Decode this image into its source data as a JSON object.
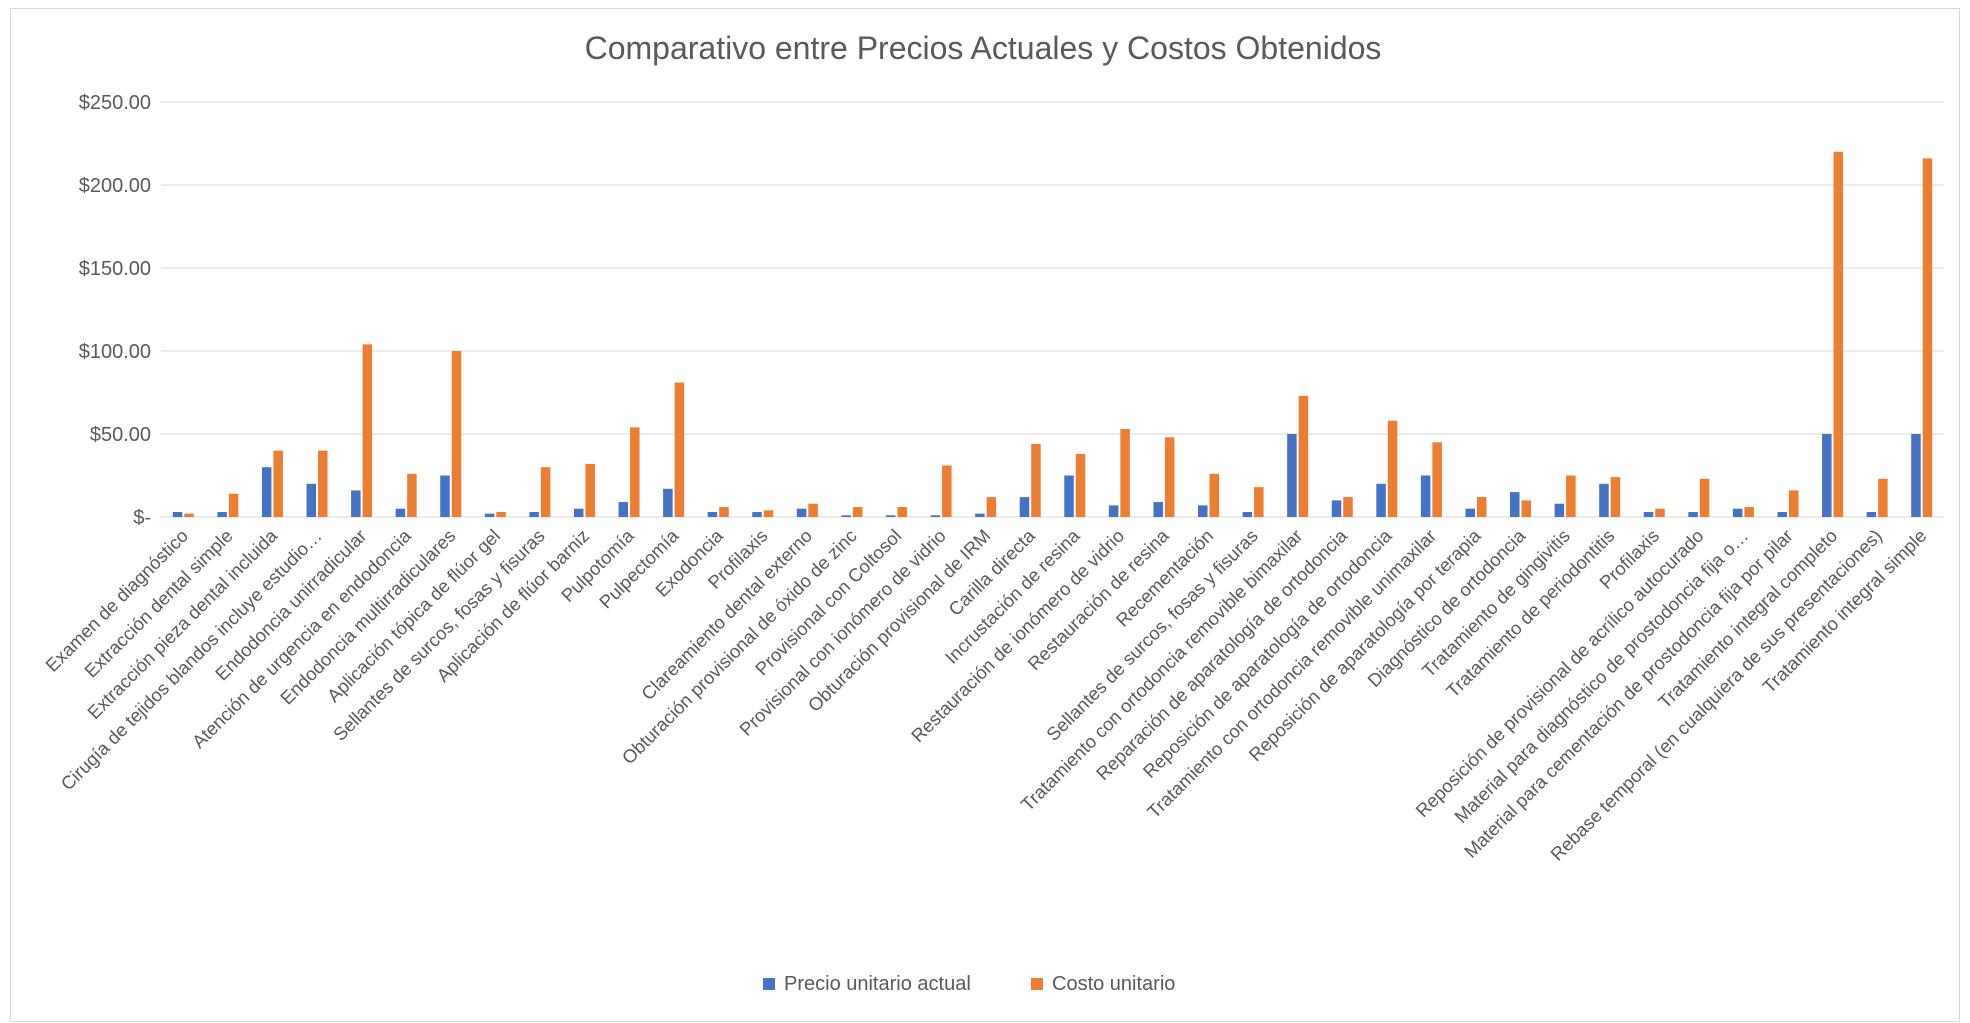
{
  "chart_data": {
    "type": "bar",
    "title": "Comparativo entre Precios Actuales y Costos Obtenidos",
    "xlabel": "",
    "ylabel": "",
    "ylim": [
      0,
      250
    ],
    "ytick_values": [
      0,
      50,
      100,
      150,
      200,
      250
    ],
    "ytick_labels": [
      "$-",
      "$50.00",
      "$100.00",
      "$150.00",
      "$200.00",
      "$250.00"
    ],
    "grid": true,
    "legend_position": "bottom",
    "categories": [
      "Examen de diagnóstico",
      "Extracción dental simple",
      "Extracción pieza dental incluida",
      "Cirugía de tejidos blandos incluye estudio…",
      "Endodoncia unirradicular",
      "Atención de urgencia en endodoncia",
      "Endodoncia multirradiculares",
      "Aplicación tópica de flúor gel",
      "Sellantes de surcos, fosas y fisuras",
      "Aplicación de flúor barniz",
      "Pulpotomía",
      "Pulpectomía",
      "Exodoncia",
      "Profilaxis",
      "Clareamiento dental externo",
      "Obturación provisional de óxido de zinc",
      "Provisional con Coltosol",
      "Provisional con ionómero de vidrio",
      "Obturación provisional de IRM",
      "Carilla directa",
      "Incrustación de resina",
      "Restauración de ionómero de vidrio",
      "Restauración de resina",
      "Recementación",
      "Sellantes de surcos, fosas y fisuras",
      "Tratamiento con ortodoncia removible bimaxilar",
      "Reparación de aparatología de ortodoncia",
      "Reposición de aparatología de ortodoncia",
      "Tratamiento con ortodoncia removible unimaxilar",
      "Reposición de aparatología por terapia",
      "Diagnóstico de ortodoncia",
      "Tratamiento de gingivitis",
      "Tratamiento de periodontitis",
      "Profilaxis",
      "Reposición de provisional de acrílico autocurado",
      "Material para diagnóstico de prostodoncia fija o…",
      "Material para cementación de prostodoncia fija por pilar",
      "Tratamiento integral completo",
      "Rebase temporal (en cualquiera de sus presentaciones)",
      "Tratamiento integral simple"
    ],
    "series": [
      {
        "name": "Precio unitario actual",
        "color": "#4472c4",
        "values": [
          3,
          3,
          30,
          20,
          16,
          5,
          25,
          2,
          3,
          5,
          9,
          17,
          3,
          3,
          5,
          1,
          1,
          1,
          2,
          12,
          25,
          7,
          9,
          7,
          3,
          50,
          10,
          20,
          25,
          5,
          15,
          8,
          20,
          3,
          3,
          5,
          3,
          50,
          3,
          50
        ]
      },
      {
        "name": "Costo unitario",
        "color": "#ed7d31",
        "values": [
          2,
          14,
          40,
          40,
          104,
          26,
          100,
          3,
          30,
          32,
          54,
          81,
          6,
          4,
          8,
          6,
          6,
          31,
          12,
          44,
          38,
          53,
          48,
          26,
          18,
          73,
          12,
          58,
          45,
          12,
          10,
          25,
          24,
          5,
          23,
          6,
          16,
          220,
          23,
          216
        ]
      }
    ],
    "gridline_color": "#d9d9d9"
  }
}
